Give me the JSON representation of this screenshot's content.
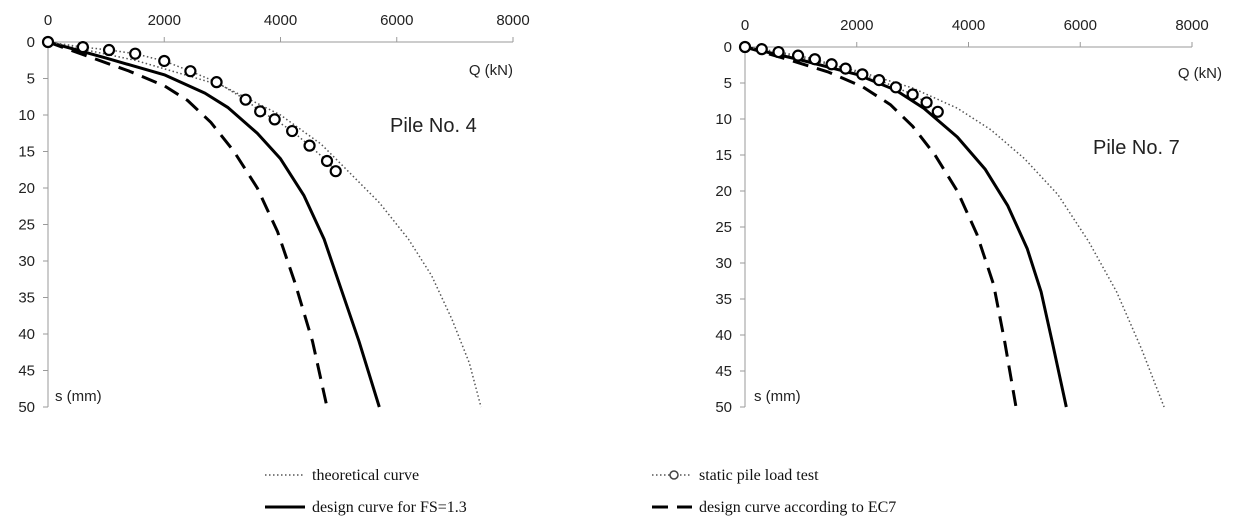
{
  "chart_data": [
    {
      "type": "line",
      "title": "Pile No. 4",
      "xlabel": "Q (kN)",
      "ylabel": "s (mm)",
      "xlim": [
        0,
        8000
      ],
      "ylim": [
        0,
        50
      ],
      "y_inverted": true,
      "x_axis_position": "top",
      "grid": false,
      "xticks": [
        "0",
        "2000",
        "4000",
        "6000",
        "8000"
      ],
      "yticks": [
        "0",
        "5",
        "10",
        "15",
        "20",
        "25",
        "30",
        "35",
        "40",
        "45",
        "50"
      ],
      "series": [
        {
          "key": "theoretical",
          "style": "dotted",
          "points": [
            [
              0,
              0
            ],
            [
              1500,
              2.5
            ],
            [
              3000,
              6
            ],
            [
              4000,
              10
            ],
            [
              4700,
              14
            ],
            [
              5200,
              18
            ],
            [
              5700,
              22
            ],
            [
              6200,
              27
            ],
            [
              6600,
              32
            ],
            [
              6950,
              38
            ],
            [
              7250,
              44
            ],
            [
              7450,
              50
            ]
          ]
        },
        {
          "key": "design_fs",
          "style": "solid",
          "points": [
            [
              0,
              0
            ],
            [
              1000,
              2.2
            ],
            [
              2000,
              4.5
            ],
            [
              2700,
              7
            ],
            [
              3100,
              9
            ],
            [
              3600,
              12.5
            ],
            [
              4000,
              16
            ],
            [
              4400,
              21
            ],
            [
              4750,
              27
            ],
            [
              5050,
              34
            ],
            [
              5350,
              41
            ],
            [
              5700,
              50
            ]
          ]
        },
        {
          "key": "design_ec7",
          "style": "dashed",
          "points": [
            [
              0,
              0
            ],
            [
              700,
              2
            ],
            [
              1400,
              4
            ],
            [
              2000,
              6
            ],
            [
              2400,
              8
            ],
            [
              2800,
              11
            ],
            [
              3200,
              15
            ],
            [
              3600,
              20
            ],
            [
              3950,
              26
            ],
            [
              4250,
              33
            ],
            [
              4550,
              41
            ],
            [
              4800,
              50
            ]
          ]
        },
        {
          "key": "static_test",
          "style": "markers",
          "points": [
            [
              0,
              0
            ],
            [
              600,
              0.7
            ],
            [
              1050,
              1.1
            ],
            [
              1500,
              1.6
            ],
            [
              2000,
              2.6
            ],
            [
              2450,
              4
            ],
            [
              2900,
              5.5
            ],
            [
              3400,
              7.9
            ],
            [
              3650,
              9.5
            ],
            [
              3900,
              10.6
            ],
            [
              4200,
              12.2
            ],
            [
              4500,
              14.2
            ],
            [
              4800,
              16.3
            ],
            [
              4950,
              17.7
            ]
          ]
        }
      ]
    },
    {
      "type": "line",
      "title": "Pile No. 7",
      "xlabel": "Q (kN)",
      "ylabel": "s (mm)",
      "xlim": [
        0,
        8000
      ],
      "ylim": [
        0,
        50
      ],
      "y_inverted": true,
      "x_axis_position": "top",
      "grid": false,
      "xticks": [
        "0",
        "2000",
        "4000",
        "6000",
        "8000"
      ],
      "yticks": [
        "0",
        "5",
        "10",
        "15",
        "20",
        "25",
        "30",
        "35",
        "40",
        "45",
        "50"
      ],
      "series": [
        {
          "key": "theoretical",
          "style": "dotted",
          "points": [
            [
              0,
              0
            ],
            [
              1000,
              1.5
            ],
            [
              2000,
              3.3
            ],
            [
              3000,
              5.7
            ],
            [
              3800,
              8.5
            ],
            [
              4400,
              11.5
            ],
            [
              5000,
              15.5
            ],
            [
              5600,
              20.5
            ],
            [
              6150,
              27
            ],
            [
              6650,
              34
            ],
            [
              7100,
              42
            ],
            [
              7500,
              50
            ]
          ]
        },
        {
          "key": "design_fs",
          "style": "solid",
          "points": [
            [
              0,
              0
            ],
            [
              1000,
              1.8
            ],
            [
              2000,
              3.8
            ],
            [
              2700,
              6
            ],
            [
              3200,
              8.5
            ],
            [
              3800,
              12.5
            ],
            [
              4300,
              17
            ],
            [
              4700,
              22
            ],
            [
              5050,
              28
            ],
            [
              5300,
              34
            ],
            [
              5500,
              41
            ],
            [
              5750,
              50
            ]
          ]
        },
        {
          "key": "design_ec7",
          "style": "dashed",
          "points": [
            [
              0,
              0
            ],
            [
              800,
              1.8
            ],
            [
              1500,
              3.5
            ],
            [
              2100,
              5.5
            ],
            [
              2600,
              8
            ],
            [
              3000,
              11
            ],
            [
              3400,
              15
            ],
            [
              3800,
              20
            ],
            [
              4150,
              26
            ],
            [
              4450,
              33
            ],
            [
              4650,
              41
            ],
            [
              4850,
              50
            ]
          ]
        },
        {
          "key": "static_test",
          "style": "markers",
          "points": [
            [
              0,
              0
            ],
            [
              300,
              0.3
            ],
            [
              600,
              0.7
            ],
            [
              950,
              1.2
            ],
            [
              1250,
              1.7
            ],
            [
              1550,
              2.4
            ],
            [
              1800,
              3
            ],
            [
              2100,
              3.8
            ],
            [
              2400,
              4.6
            ],
            [
              2700,
              5.6
            ],
            [
              3000,
              6.6
            ],
            [
              3250,
              7.7
            ],
            [
              3450,
              9
            ]
          ]
        }
      ]
    }
  ],
  "legend": {
    "placement": "bottom",
    "items": [
      {
        "key": "theoretical",
        "label": "theoretical curve",
        "style": "dotted"
      },
      {
        "key": "static_test",
        "label": "static pile load test",
        "style": "markers"
      },
      {
        "key": "design_fs",
        "label": "design curve for FS=1.3",
        "style": "solid"
      },
      {
        "key": "design_ec7",
        "label": "design curve according to EC7",
        "style": "dashed"
      }
    ]
  },
  "colors": {
    "line": "#000000",
    "dotted": "#555555",
    "axis": "#9a9a9a",
    "text": "#222222",
    "marker_fill": "#ffffff"
  }
}
